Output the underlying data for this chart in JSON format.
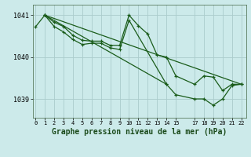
{
  "bg_color": "#cceaea",
  "line_color": "#1a5c1a",
  "grid_color": "#aacccc",
  "title": "Graphe pression niveau de la mer (hPa)",
  "series": [
    {
      "x": [
        0,
        1,
        2,
        3,
        4,
        5,
        6,
        7,
        8,
        9,
        10,
        11,
        12,
        13,
        14,
        15,
        17,
        18,
        19,
        20,
        21,
        22
      ],
      "y": [
        1040.72,
        1041.0,
        1040.83,
        1040.73,
        1040.52,
        1040.4,
        1040.38,
        1040.38,
        1040.28,
        1040.28,
        1041.0,
        1040.75,
        1040.55,
        1040.05,
        1040.0,
        1039.55,
        1039.35,
        1039.55,
        1039.52,
        1039.2,
        1039.35,
        1039.35
      ]
    },
    {
      "x": [
        1,
        2,
        3,
        4,
        5,
        6,
        7,
        8,
        9,
        10,
        14
      ],
      "y": [
        1041.0,
        1040.73,
        1040.6,
        1040.42,
        1040.3,
        1040.33,
        1040.33,
        1040.22,
        1040.18,
        1040.88,
        1039.35
      ]
    },
    {
      "x": [
        1,
        22
      ],
      "y": [
        1041.0,
        1039.35
      ]
    },
    {
      "x": [
        1,
        14,
        15,
        17,
        18,
        19,
        20,
        21,
        22
      ],
      "y": [
        1041.0,
        1039.35,
        1039.1,
        1039.0,
        1039.0,
        1038.85,
        1039.0,
        1039.32,
        1039.35
      ]
    }
  ],
  "yticks": [
    1039,
    1040,
    1041
  ],
  "xticks": [
    0,
    1,
    2,
    3,
    4,
    5,
    6,
    7,
    8,
    9,
    10,
    11,
    12,
    13,
    14,
    15,
    17,
    18,
    19,
    20,
    21,
    22
  ],
  "ylim": [
    1038.55,
    1041.25
  ],
  "xlim": [
    -0.3,
    22.5
  ]
}
